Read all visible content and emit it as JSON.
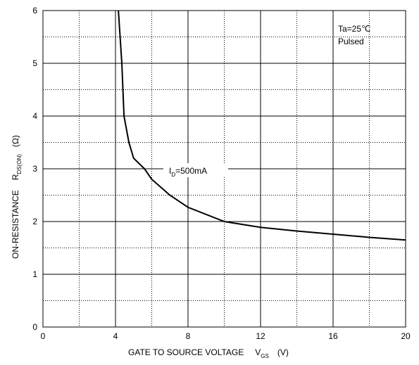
{
  "chart_data": {
    "type": "line",
    "x": [
      4.16,
      4.35,
      4.47,
      4.74,
      5,
      5.6,
      6,
      7,
      8,
      10,
      12,
      14,
      16,
      18,
      20
    ],
    "values": [
      6,
      5,
      4,
      3.5,
      3.2,
      3,
      2.8,
      2.5,
      2.27,
      2.0,
      1.89,
      1.82,
      1.76,
      1.7,
      1.65
    ],
    "color": "#000000",
    "xlim": [
      0,
      20
    ],
    "xticks": [
      0,
      4,
      8,
      12,
      16,
      20
    ],
    "xminor": [
      2,
      6,
      10,
      14,
      18
    ],
    "ylim": [
      0,
      6
    ],
    "yticks": [
      0,
      1,
      2,
      3,
      4,
      5,
      6
    ],
    "yminor": [
      0.5,
      1.5,
      2.5,
      3.5,
      4.5,
      5.5
    ],
    "grid": true,
    "xlabel": {
      "text": "GATE TO SOURCE VOLTAGE",
      "symbol": "V",
      "sub": "GS",
      "unit": "(V)"
    },
    "ylabel": {
      "text": "ON-RESISTANCE",
      "symbol": "R",
      "sub": "DS(ON)",
      "unit": "(Ω)"
    },
    "conditions": [
      "Ta=25℃",
      "Pulsed"
    ],
    "curve_label": {
      "symbol": "I",
      "sub": "D",
      "text": "=500mA"
    }
  }
}
